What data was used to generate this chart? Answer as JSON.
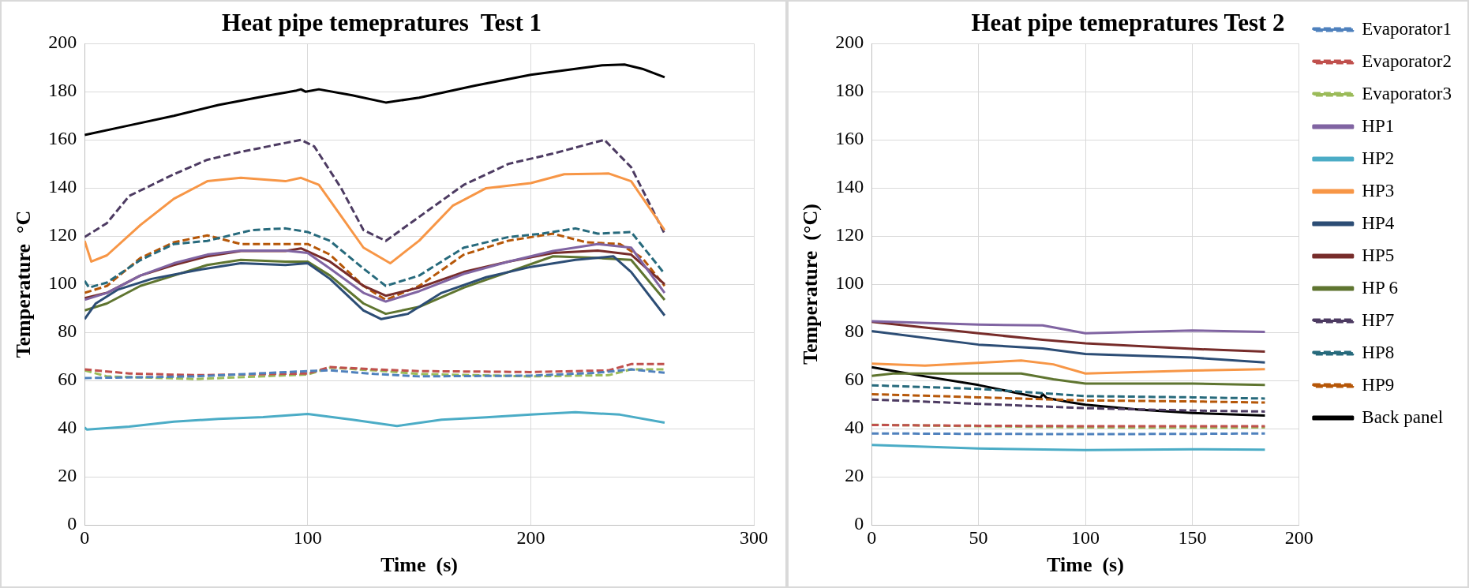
{
  "chart_data": [
    {
      "type": "line",
      "title": "Heat pipe temepratures  Test 1",
      "xlabel": "Time  (s)",
      "ylabel": "Temperature  °C",
      "xlim": [
        0,
        300
      ],
      "xticks": [
        0,
        100,
        200,
        300
      ],
      "ylim": [
        0,
        200
      ],
      "yticks": [
        0,
        20,
        40,
        60,
        80,
        100,
        120,
        140,
        160,
        180,
        200
      ],
      "grid": true,
      "legend": false,
      "series": [
        {
          "color": "#4f81bd",
          "line_style": "dashed",
          "x": [
            0,
            50,
            100,
            110,
            130,
            150,
            200,
            230,
            245,
            260
          ],
          "values": [
            61,
            61.7,
            63.9,
            64.2,
            62.7,
            61.7,
            62,
            63.2,
            64.6,
            63.2
          ]
        },
        {
          "color": "#c0504d",
          "line_style": "dashed",
          "x": [
            0,
            20,
            50,
            100,
            110,
            130,
            150,
            200,
            235,
            245,
            260
          ],
          "values": [
            64.6,
            62.9,
            62.2,
            62.9,
            65.6,
            64.6,
            63.9,
            63.5,
            64.2,
            66.8,
            66.8
          ]
        },
        {
          "color": "#9bbb59",
          "line_style": "dashed",
          "x": [
            0,
            10,
            50,
            100,
            110,
            130,
            150,
            200,
            235,
            245,
            260
          ],
          "values": [
            64.2,
            61.7,
            60.6,
            62.5,
            65.3,
            64.2,
            62.7,
            61.7,
            62.2,
            64.6,
            64.6
          ]
        },
        {
          "color": "#8064a2",
          "line_style": "solid",
          "x": [
            0,
            10,
            25,
            40,
            55,
            70,
            90,
            100,
            110,
            125,
            135,
            150,
            170,
            190,
            210,
            230,
            245,
            260
          ],
          "values": [
            93.5,
            96.4,
            103.6,
            108.7,
            112.3,
            114,
            114,
            113,
            106.5,
            96.4,
            92.8,
            97.1,
            104.3,
            109.4,
            113.8,
            116.7,
            115.2,
            96.4
          ]
        },
        {
          "color": "#4bacc6",
          "line_style": "solid",
          "x": [
            0,
            1,
            20,
            40,
            60,
            80,
            100,
            120,
            140,
            160,
            180,
            200,
            220,
            240,
            260
          ],
          "values": [
            40.5,
            39.6,
            40.8,
            42.9,
            44,
            44.8,
            46.1,
            43.7,
            41.1,
            43.7,
            44.7,
            45.8,
            46.8,
            45.8,
            42.5
          ]
        },
        {
          "color": "#f79646",
          "line_style": "solid",
          "x": [
            0,
            3,
            10,
            25,
            40,
            55,
            70,
            90,
            97,
            105,
            115,
            125,
            137,
            150,
            165,
            180,
            200,
            215,
            235,
            245,
            260
          ],
          "values": [
            118,
            109.4,
            112,
            124.6,
            135.5,
            142.8,
            144.2,
            142.8,
            144.2,
            141.3,
            128.3,
            115.2,
            108.7,
            118.1,
            132.6,
            139.9,
            142,
            145.7,
            146,
            142.8,
            122.5
          ]
        },
        {
          "color": "#2c4d75",
          "line_style": "solid",
          "x": [
            0,
            5,
            15,
            30,
            50,
            70,
            90,
            100,
            110,
            125,
            133,
            145,
            160,
            180,
            200,
            220,
            237,
            245,
            260
          ],
          "values": [
            85.5,
            92,
            97.8,
            102.2,
            105.8,
            108.7,
            108,
            108.7,
            102.2,
            89.1,
            85.5,
            87.7,
            96.4,
            102.9,
            107.2,
            110.1,
            111.6,
            105.1,
            87
          ]
        },
        {
          "color": "#772c2a",
          "line_style": "solid",
          "x": [
            0,
            10,
            25,
            40,
            55,
            70,
            90,
            97,
            110,
            125,
            135,
            150,
            170,
            190,
            210,
            230,
            245,
            260
          ],
          "values": [
            94.2,
            96.4,
            103.6,
            108,
            111.6,
            113.8,
            113.8,
            114.9,
            109.4,
            99.3,
            95.2,
            98.6,
            105.1,
            109.4,
            113,
            114,
            112.3,
            100
          ]
        },
        {
          "color": "#5f7530",
          "line_style": "solid",
          "x": [
            0,
            10,
            25,
            40,
            55,
            70,
            90,
            100,
            110,
            125,
            135,
            150,
            170,
            190,
            210,
            230,
            245,
            260
          ],
          "values": [
            89.1,
            92,
            99.3,
            103.6,
            108,
            110.1,
            109.4,
            109.4,
            103.6,
            92,
            87.7,
            90.6,
            98.6,
            105.1,
            111.6,
            110.9,
            110.1,
            93.5
          ]
        },
        {
          "color": "#4d3b62",
          "line_style": "dashed",
          "x": [
            0,
            10,
            20,
            40,
            55,
            70,
            90,
            97,
            103,
            115,
            125,
            135,
            150,
            170,
            190,
            210,
            233,
            245,
            260
          ],
          "values": [
            119.6,
            125.4,
            136.7,
            145.7,
            151.7,
            155,
            158.7,
            160,
            157.2,
            139.9,
            122.5,
            118,
            128,
            141.3,
            150,
            154.3,
            160,
            148.6,
            121
          ]
        },
        {
          "color": "#276a7c",
          "line_style": "dashed",
          "x": [
            0,
            2,
            10,
            25,
            40,
            55,
            75,
            90,
            100,
            110,
            125,
            135,
            150,
            170,
            190,
            205,
            220,
            230,
            245,
            260
          ],
          "values": [
            101.4,
            98.6,
            100.7,
            110,
            116.7,
            118,
            122.5,
            123.2,
            121.7,
            118,
            106.5,
            99.3,
            103.6,
            115.2,
            119.6,
            121,
            123.2,
            121,
            121.7,
            104.3
          ]
        },
        {
          "color": "#b65708",
          "line_style": "dashed",
          "x": [
            0,
            10,
            25,
            40,
            55,
            70,
            90,
            100,
            110,
            125,
            135,
            150,
            170,
            190,
            210,
            225,
            240,
            250,
            260
          ],
          "values": [
            96.4,
            99.3,
            110.9,
            117.4,
            120.3,
            116.7,
            116.7,
            116.7,
            112.3,
            99.3,
            93.5,
            99.3,
            112.3,
            118.1,
            121,
            117.4,
            116.7,
            110.9,
            99.3
          ]
        },
        {
          "color": "#000000",
          "line_style": "solid",
          "x": [
            0,
            20,
            40,
            60,
            80,
            95,
            97,
            99,
            105,
            120,
            135,
            150,
            175,
            200,
            220,
            232,
            242,
            250,
            260
          ],
          "values": [
            162,
            166,
            170,
            174.5,
            178,
            180.5,
            181,
            180,
            181,
            178.5,
            175.5,
            177.5,
            182.5,
            187,
            189.5,
            191,
            191.3,
            189.5,
            186
          ]
        }
      ]
    },
    {
      "type": "line",
      "title": "Heat pipe temepratures Test 2",
      "xlabel": "Time  (s)",
      "ylabel": "Temperature  (°C)",
      "xlim": [
        0,
        200
      ],
      "xticks": [
        0,
        50,
        100,
        150,
        200
      ],
      "ylim": [
        0,
        200
      ],
      "yticks": [
        0,
        20,
        40,
        60,
        80,
        100,
        120,
        140,
        160,
        180,
        200
      ],
      "grid": true,
      "legend": "right",
      "series": [
        {
          "name": "Evaporator1",
          "color": "#4f81bd",
          "line_style": "dashed",
          "x": [
            0,
            50,
            100,
            150,
            184
          ],
          "values": [
            38,
            37.8,
            37.7,
            37.8,
            38
          ]
        },
        {
          "name": "Evaporator2",
          "color": "#c0504d",
          "line_style": "dashed",
          "x": [
            0,
            50,
            100,
            150,
            184
          ],
          "values": [
            41.5,
            41.2,
            41,
            41,
            41
          ]
        },
        {
          "name": "Evaporator3",
          "color": "#9bbb59",
          "line_style": "dashed",
          "x": [
            0,
            50,
            100,
            150,
            184
          ],
          "values": [
            41.6,
            41,
            40.5,
            40.4,
            40.5
          ]
        },
        {
          "name": "HP1",
          "color": "#8064a2",
          "line_style": "solid",
          "x": [
            0,
            50,
            80,
            100,
            150,
            184
          ],
          "values": [
            84.6,
            83.2,
            82.9,
            79.6,
            80.8,
            80.2
          ]
        },
        {
          "name": "HP2",
          "color": "#4bacc6",
          "line_style": "solid",
          "x": [
            0,
            50,
            100,
            150,
            184
          ],
          "values": [
            33.2,
            31.7,
            31.1,
            31.4,
            31.2
          ]
        },
        {
          "name": "HP3",
          "color": "#f79646",
          "line_style": "solid",
          "x": [
            0,
            25,
            70,
            85,
            100,
            150,
            184
          ],
          "values": [
            67,
            66.2,
            68.3,
            66.7,
            62.9,
            64.1,
            64.7
          ]
        },
        {
          "name": "HP4",
          "color": "#2c4d75",
          "line_style": "solid",
          "x": [
            0,
            50,
            80,
            100,
            150,
            184
          ],
          "values": [
            80.5,
            74.9,
            73.3,
            71,
            69.5,
            67.5
          ]
        },
        {
          "name": "HP5",
          "color": "#772c2a",
          "line_style": "solid",
          "x": [
            0,
            50,
            80,
            100,
            150,
            184
          ],
          "values": [
            84.4,
            79.6,
            76.9,
            75.4,
            73.1,
            72
          ]
        },
        {
          "name": "HP 6",
          "color": "#5f7530",
          "line_style": "solid",
          "x": [
            0,
            10,
            70,
            85,
            100,
            150,
            184
          ],
          "values": [
            61.9,
            62.9,
            62.9,
            60.5,
            58.7,
            58.7,
            58.1
          ]
        },
        {
          "name": "HP7",
          "color": "#4d3b62",
          "line_style": "dashed",
          "x": [
            0,
            50,
            100,
            150,
            184
          ],
          "values": [
            52.1,
            50.3,
            48.5,
            47.5,
            47.1
          ]
        },
        {
          "name": "HP8",
          "color": "#276a7c",
          "line_style": "dashed",
          "x": [
            0,
            50,
            75,
            100,
            150,
            184
          ],
          "values": [
            58,
            56.5,
            55,
            53.5,
            53,
            52.5
          ]
        },
        {
          "name": "HP9",
          "color": "#b65708",
          "line_style": "dashed",
          "x": [
            0,
            50,
            100,
            150,
            184
          ],
          "values": [
            54.3,
            53,
            51.7,
            51.3,
            50.8
          ]
        },
        {
          "name": "Back panel",
          "color": "#000000",
          "line_style": "solid",
          "x": [
            0,
            25,
            50,
            75,
            79,
            80,
            82,
            93,
            100,
            125,
            150,
            184
          ],
          "values": [
            65.5,
            61.7,
            58.1,
            53.5,
            52.7,
            54.3,
            52.7,
            50.9,
            49.9,
            47.9,
            46.5,
            45.4
          ]
        }
      ]
    }
  ]
}
